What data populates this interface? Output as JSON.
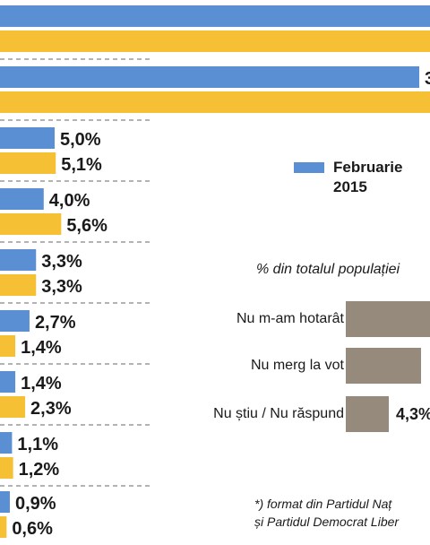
{
  "chart_data": {
    "type": "bar",
    "orientation": "horizontal",
    "note": "Image is a crop; party category labels are not visible.",
    "series": [
      {
        "name": "Februarie 2015",
        "color": "#5b8fd4",
        "values": [
          null,
          null,
          5.0,
          4.0,
          3.3,
          2.7,
          1.4,
          1.1,
          0.9
        ],
        "labels": [
          "",
          "3",
          "5,0%",
          "4,0%",
          "3,3%",
          "2,7%",
          "1,4%",
          "1,1%",
          "0,9%"
        ]
      },
      {
        "color": "#f5c033",
        "values": [
          null,
          null,
          5.1,
          5.6,
          3.3,
          1.4,
          2.3,
          1.2,
          0.6
        ],
        "labels": [
          "",
          "",
          "5,1%",
          "5,6%",
          "3,3%",
          "1,4%",
          "2,3%",
          "1,2%",
          "0,6%"
        ]
      }
    ]
  },
  "legend": {
    "series_label": "Februarie 2015"
  },
  "undecided": {
    "subtitle": "% din totalul populației",
    "items": [
      {
        "label": "Nu m-am hotarât",
        "value_label": ""
      },
      {
        "label": "Nu merg la vot",
        "value_label": ""
      },
      {
        "label": "Nu știu / Nu răspund",
        "value_label": "4,3%"
      }
    ]
  },
  "footnote": {
    "line1": "*) format din Partidul Naț",
    "line2": "și Partidul Democrat Liber"
  }
}
